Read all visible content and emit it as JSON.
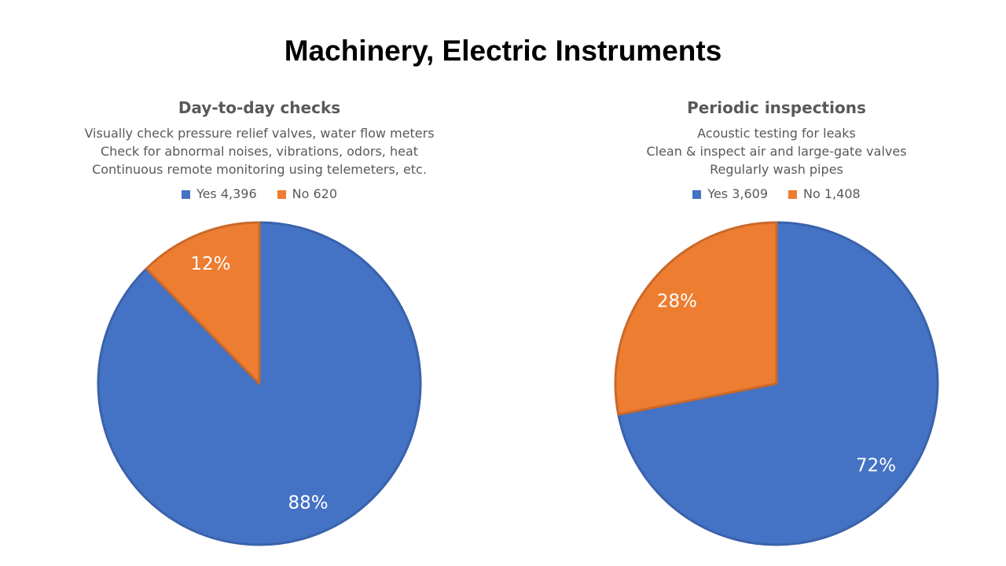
{
  "title": "Machinery, Electric Instruments",
  "chart_data": [
    {
      "type": "pie",
      "title": "Day-to-day checks",
      "subtitle_lines": [
        "Visually check pressure relief valves, water flow meters",
        "Check for abnormal noises, vibrations, odors, heat",
        "Continuous remote monitoring using telemeters, etc."
      ],
      "legend_position": "top",
      "legend": [
        {
          "label": "Yes 4,396",
          "color": "#4472C4"
        },
        {
          "label": "No 620",
          "color": "#ED7D31"
        }
      ],
      "categories": [
        "Yes",
        "No"
      ],
      "values": [
        4396,
        620
      ],
      "data_labels": [
        "88%",
        "12%"
      ],
      "colors": [
        "#4472C4",
        "#ED7D31"
      ]
    },
    {
      "type": "pie",
      "title": "Periodic inspections",
      "subtitle_lines": [
        "Acoustic testing for leaks",
        "Clean & inspect air and large-gate valves",
        "Regularly wash pipes"
      ],
      "legend_position": "top",
      "legend": [
        {
          "label": "Yes 3,609",
          "color": "#4472C4"
        },
        {
          "label": "No 1,408",
          "color": "#ED7D31"
        }
      ],
      "categories": [
        "Yes",
        "No"
      ],
      "values": [
        3609,
        1408
      ],
      "data_labels": [
        "72%",
        "28%"
      ],
      "colors": [
        "#4472C4",
        "#ED7D31"
      ]
    }
  ]
}
